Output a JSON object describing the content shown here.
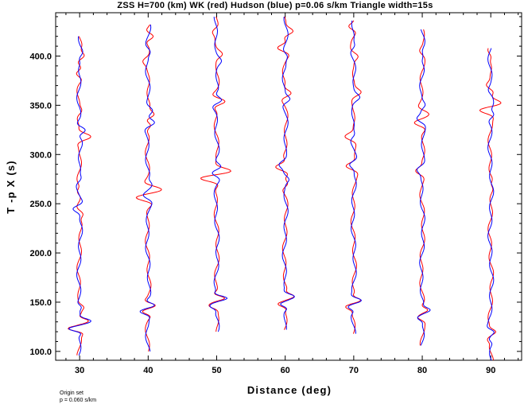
{
  "chart_data": {
    "type": "line",
    "title": "ZSS H=700 (km) WK (red) Hudson (blue) p=0.06 s/km Triangle width=15s",
    "xlabel": "Distance (deg)",
    "ylabel": "T -p X (s)",
    "xlim": [
      26.5,
      94.5
    ],
    "ylim": [
      91,
      444
    ],
    "x_ticks": [
      30,
      40,
      50,
      60,
      70,
      80,
      90
    ],
    "x_tick_labels": [
      "30",
      "40",
      "50",
      "60",
      "70",
      "80",
      "90"
    ],
    "y_ticks": [
      100,
      150,
      200,
      250,
      300,
      350,
      400
    ],
    "y_tick_labels": [
      "100.0",
      "150.0",
      "200.0",
      "250.0",
      "300.0",
      "350.0",
      "400.0"
    ],
    "grid": false,
    "series_colors": {
      "WK": "#ff0000",
      "Hudson": "#0000ff"
    },
    "traces": [
      {
        "distance": 30,
        "t_start": 96,
        "t_end": 420,
        "arrivals": [
          {
            "t": 123,
            "amp": -1.3
          },
          {
            "t": 131,
            "amp": 1.0
          },
          {
            "t": 145,
            "amp": 0.3
          }
        ],
        "wk_wiggles": [
          {
            "t": 240,
            "amp": 0.5
          },
          {
            "t": 262,
            "amp": -0.4
          },
          {
            "t": 318,
            "amp": 1.2
          },
          {
            "t": 344,
            "amp": 0.3
          },
          {
            "t": 382,
            "amp": -0.7
          },
          {
            "t": 400,
            "amp": 0.6
          }
        ],
        "hudson_wiggles": [
          {
            "t": 245,
            "amp": -0.9
          },
          {
            "t": 275,
            "amp": 0.3
          },
          {
            "t": 325,
            "amp": 0.9
          },
          {
            "t": 398,
            "amp": -0.3
          }
        ]
      },
      {
        "distance": 40,
        "t_start": 100,
        "t_end": 432,
        "arrivals": [
          {
            "t": 140,
            "amp": -0.7
          },
          {
            "t": 147,
            "amp": 0.9
          }
        ],
        "wk_wiggles": [
          {
            "t": 256,
            "amp": -1.8
          },
          {
            "t": 265,
            "amp": 1.4
          },
          {
            "t": 330,
            "amp": 0.6
          },
          {
            "t": 340,
            "amp": 0.7
          },
          {
            "t": 395,
            "amp": -0.4
          },
          {
            "t": 420,
            "amp": 0.9
          }
        ],
        "hudson_wiggles": [
          {
            "t": 258,
            "amp": -0.7
          },
          {
            "t": 269,
            "amp": 0.5
          },
          {
            "t": 332,
            "amp": 0.8
          },
          {
            "t": 345,
            "amp": 0.4
          },
          {
            "t": 405,
            "amp": 0.3
          }
        ]
      },
      {
        "distance": 50,
        "t_start": 120,
        "t_end": 440,
        "arrivals": [
          {
            "t": 146,
            "amp": -0.6
          },
          {
            "t": 154,
            "amp": 1.2
          }
        ],
        "wk_wiggles": [
          {
            "t": 276,
            "amp": -2.0
          },
          {
            "t": 283,
            "amp": 1.2
          },
          {
            "t": 354,
            "amp": 1.4
          },
          {
            "t": 402,
            "amp": 0.5
          },
          {
            "t": 425,
            "amp": -0.4
          }
        ],
        "hudson_wiggles": [
          {
            "t": 281,
            "amp": -0.7
          },
          {
            "t": 288,
            "amp": 0.5
          },
          {
            "t": 355,
            "amp": 0.9
          },
          {
            "t": 395,
            "amp": 0.3
          }
        ]
      },
      {
        "distance": 60,
        "t_start": 122,
        "t_end": 440,
        "arrivals": [
          {
            "t": 148,
            "amp": -0.8
          },
          {
            "t": 156,
            "amp": 0.8
          }
        ],
        "wk_wiggles": [
          {
            "t": 270,
            "amp": 0.5
          },
          {
            "t": 287,
            "amp": -1.2
          },
          {
            "t": 362,
            "amp": 0.9
          },
          {
            "t": 408,
            "amp": -1.1
          },
          {
            "t": 425,
            "amp": 0.8
          }
        ],
        "hudson_wiggles": [
          {
            "t": 275,
            "amp": 0.4
          },
          {
            "t": 290,
            "amp": -0.5
          },
          {
            "t": 356,
            "amp": 0.6
          },
          {
            "t": 400,
            "amp": 0.3
          }
        ]
      },
      {
        "distance": 70,
        "t_start": 118,
        "t_end": 436,
        "arrivals": [
          {
            "t": 145,
            "amp": -0.6
          },
          {
            "t": 152,
            "amp": 0.8
          }
        ],
        "wk_wiggles": [
          {
            "t": 288,
            "amp": -1.0
          },
          {
            "t": 318,
            "amp": -0.9
          },
          {
            "t": 363,
            "amp": 0.7
          },
          {
            "t": 400,
            "amp": 0.5
          },
          {
            "t": 430,
            "amp": -0.8
          }
        ],
        "hudson_wiggles": [
          {
            "t": 290,
            "amp": -0.6
          },
          {
            "t": 320,
            "amp": 0.3
          },
          {
            "t": 358,
            "amp": 0.5
          },
          {
            "t": 410,
            "amp": 0.3
          }
        ]
      },
      {
        "distance": 80,
        "t_start": 106,
        "t_end": 427,
        "arrivals": [
          {
            "t": 134,
            "amp": -0.5
          },
          {
            "t": 142,
            "amp": 0.7
          }
        ],
        "wk_wiggles": [
          {
            "t": 283,
            "amp": -0.7
          },
          {
            "t": 332,
            "amp": -1.3
          },
          {
            "t": 342,
            "amp": 0.8
          },
          {
            "t": 405,
            "amp": -0.3
          }
        ],
        "hudson_wiggles": [
          {
            "t": 285,
            "amp": -0.5
          },
          {
            "t": 336,
            "amp": -0.6
          },
          {
            "t": 350,
            "amp": 0.4
          },
          {
            "t": 400,
            "amp": 0.2
          }
        ]
      },
      {
        "distance": 90,
        "t_start": 91,
        "t_end": 408,
        "arrivals": [
          {
            "t": 112,
            "amp": -0.3
          },
          {
            "t": 120,
            "amp": 0.5
          }
        ],
        "wk_wiggles": [
          {
            "t": 270,
            "amp": -0.3
          },
          {
            "t": 345,
            "amp": -1.2
          },
          {
            "t": 352,
            "amp": 1.0
          },
          {
            "t": 370,
            "amp": -0.5
          },
          {
            "t": 400,
            "amp": 0.3
          }
        ],
        "hudson_wiggles": [
          {
            "t": 340,
            "amp": 0.5
          },
          {
            "t": 365,
            "amp": -0.2
          }
        ]
      }
    ]
  },
  "footer": {
    "line1": "Origin set",
    "line2": "p =  0.060 s/km"
  }
}
